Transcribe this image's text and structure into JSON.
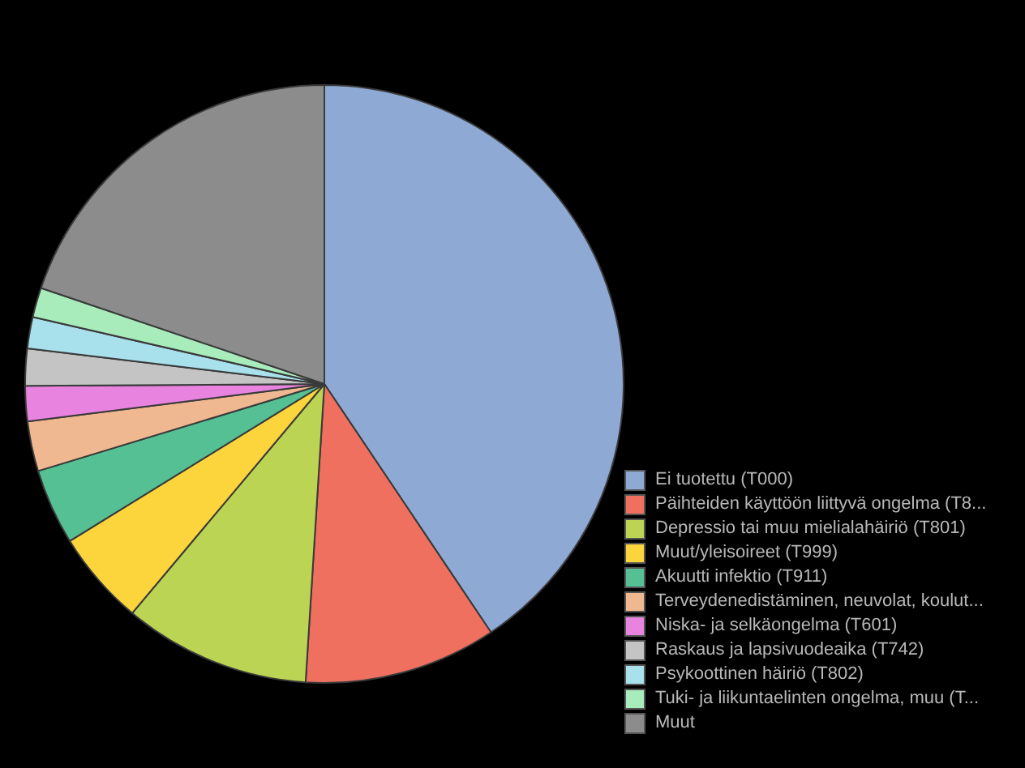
{
  "chart_data": {
    "type": "pie",
    "categories": [
      "Ei tuotettu (T000)",
      "Päihteiden käyttöön liittyvä ongelma (T8...",
      "Depressio tai muu mielialahäiriö (T801)",
      "Muut/yleisoireet (T999)",
      "Akuutti infektio  (T911)",
      "Terveydenedistäminen, neuvolat, koulut...",
      "Niska- ja selkäongelma (T601)",
      "Raskaus ja lapsivuodeaika (T742)",
      "Psykoottinen häiriö (T802)",
      "Tuki- ja liikuntaelinten ongelma, muu (T...",
      "Muut"
    ],
    "values": [
      40.6,
      10.4,
      10.1,
      5.1,
      4.1,
      2.7,
      1.9,
      2.0,
      1.7,
      1.6,
      19.8
    ],
    "colors": [
      "#8eaad4",
      "#f07060",
      "#bcd454",
      "#fcd43c",
      "#54c094",
      "#f0b890",
      "#e884e0",
      "#c4c4c4",
      "#a8e0ec",
      "#a8ecbc",
      "#8c8c8c"
    ],
    "legend": "bottom right"
  }
}
